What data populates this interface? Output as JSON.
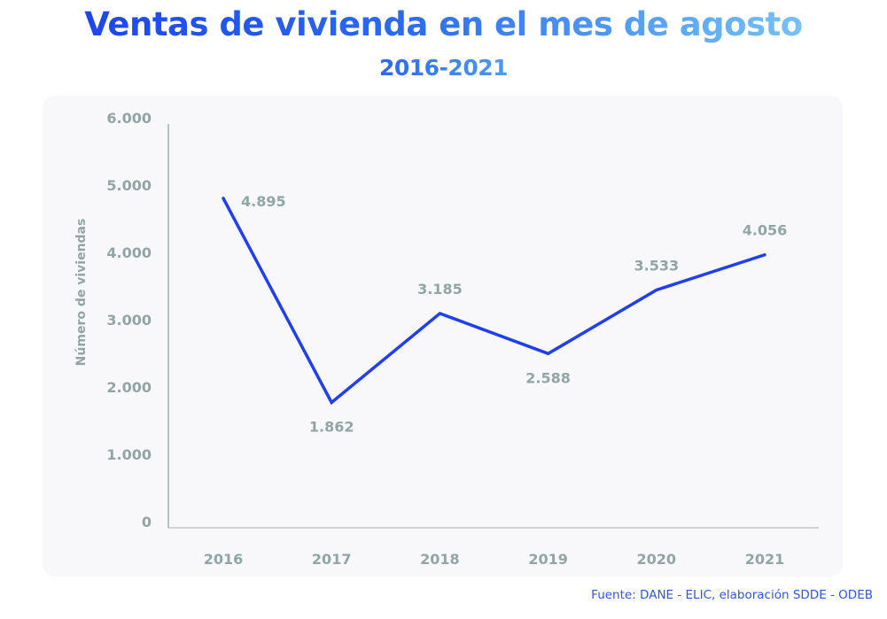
{
  "chart_data": {
    "type": "line",
    "title": "Ventas de vivienda en el mes de agosto",
    "subtitle": "2016-2021",
    "xlabel": "",
    "ylabel": "Número de viviendas",
    "categories": [
      "2016",
      "2017",
      "2018",
      "2019",
      "2020",
      "2021"
    ],
    "series": [
      {
        "name": "Ventas de vivienda",
        "values": [
          4895,
          1862,
          3185,
          2588,
          3533,
          4056
        ],
        "labels": [
          "4.895",
          "1.862",
          "3.185",
          "2.588",
          "3.533",
          "4.056"
        ],
        "color": "#1f3ff0"
      }
    ],
    "ylim": [
      0,
      6000
    ],
    "yticks": [
      0,
      1000,
      2000,
      3000,
      4000,
      5000,
      6000
    ],
    "ytick_labels": [
      "0",
      "1.000",
      "2.000",
      "3.000",
      "4.000",
      "5.000",
      "6.000"
    ],
    "grid": false,
    "legend": "none",
    "source": "Fuente: DANE - ELIC, elaboración SDDE - ODEB"
  }
}
